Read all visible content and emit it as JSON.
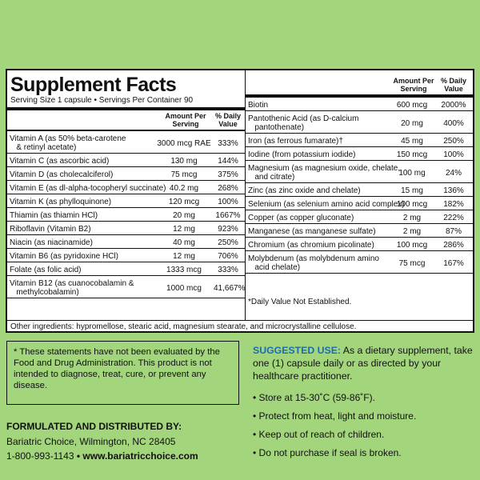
{
  "title": "Supplement Facts",
  "serving": "Serving Size 1 capsule • Servings Per Container 90",
  "header": {
    "amount": [
      "Amount Per",
      "Serving"
    ],
    "dv": [
      "% Daily",
      "Value"
    ]
  },
  "left_rows": [
    {
      "name": [
        "Vitamin A (as 50% beta-carotene",
        "   & retinyl acetate)"
      ],
      "amount": "3000 mcg RAE",
      "dv": "333%"
    },
    {
      "name": [
        "Vitamin C (as ascorbic acid)"
      ],
      "amount": "130 mg",
      "dv": "144%"
    },
    {
      "name": [
        "Vitamin D (as cholecalciferol)"
      ],
      "amount": "75 mcg",
      "dv": "375%"
    },
    {
      "name": [
        "Vitamin E (as dl-alpha-tocopheryl succinate)"
      ],
      "amount": "40.2 mg",
      "dv": "268%"
    },
    {
      "name": [
        "Vitamin K (as phylloquinone)"
      ],
      "amount": "120 mcg",
      "dv": "100%"
    },
    {
      "name": [
        "Thiamin (as thiamin HCl)"
      ],
      "amount": "20 mg",
      "dv": "1667%"
    },
    {
      "name": [
        "Riboflavin (Vitamin B2)"
      ],
      "amount": "12 mg",
      "dv": "923%"
    },
    {
      "name": [
        "Niacin (as niacinamide)"
      ],
      "amount": "40 mg",
      "dv": "250%"
    },
    {
      "name": [
        "Vitamin B6 (as pyridoxine HCl)"
      ],
      "amount": "12 mg",
      "dv": "706%"
    },
    {
      "name": [
        "Folate (as folic acid)"
      ],
      "amount": "1333 mcg",
      "dv": "333%"
    },
    {
      "name": [
        "Vitamin B12 (as cuanocobalamin &",
        "   methylcobalamin)"
      ],
      "amount": "1000 mcg",
      "dv": "41,667%"
    }
  ],
  "right_rows": [
    {
      "name": [
        "Biotin"
      ],
      "amount": "600 mcg",
      "dv": "2000%"
    },
    {
      "name": [
        "Pantothenic Acid (as D-calcium",
        "   pantothenate)"
      ],
      "amount": "20 mg",
      "dv": "400%"
    },
    {
      "name": [
        "Iron (as ferrous fumarate)†"
      ],
      "amount": "45 mg",
      "dv": "250%"
    },
    {
      "name": [
        "Iodine (from potassium iodide)"
      ],
      "amount": "150 mcg",
      "dv": "100%"
    },
    {
      "name": [
        "Magnesium (as magnesium oxide, chelate,",
        "   and citrate)"
      ],
      "amount": "100 mg",
      "dv": "24%"
    },
    {
      "name": [
        "Zinc (as zinc oxide and chelate)"
      ],
      "amount": "15 mg",
      "dv": "136%"
    },
    {
      "name": [
        "Selenium (as selenium amino acid complex)"
      ],
      "amount": "100 mcg",
      "dv": "182%"
    },
    {
      "name": [
        "Copper (as copper gluconate)"
      ],
      "amount": "2 mg",
      "dv": "222%"
    },
    {
      "name": [
        "Manganese (as manganese sulfate)"
      ],
      "amount": "2 mg",
      "dv": "87%"
    },
    {
      "name": [
        "Chromium (as chromium picolinate)"
      ],
      "amount": "100 mcg",
      "dv": "286%"
    },
    {
      "name": [
        "Molybdenum (as molybdenum amino",
        "   acid chelate)"
      ],
      "amount": "75 mcg",
      "dv": "167%"
    }
  ],
  "dv_note": "*Daily Value Not Established.",
  "other_ingredients": "Other ingredients: hypromellose, stearic acid, magnesium stearate, and microcrystalline cellulose.",
  "disclaimer": "* These statements have not been evaluated by the Food and Drug Administration. This product is not intended to diagnose, treat, cure, or prevent any disease.",
  "formulated_by": "FORMULATED AND DISTRIBUTED BY:",
  "address": "Bariatric Choice, Wilmington, NC 28405",
  "phone": "1-800-993-1143",
  "website": "• www.bariatricchoice.com",
  "suggested_use_label": "SUGGESTED USE:",
  "suggested_use_text": " As a dietary supplement, take one (1) capsule daily or as directed by your healthcare practitioner.",
  "bullets": [
    "• Store at 15-30˚C (59-86˚F).",
    "• Protect from heat, light and moisture.",
    "• Keep out of reach of children.",
    "• Do not purchase if seal is broken."
  ],
  "colors": {
    "background": "#a3d57d",
    "accent": "#1b6bb5"
  }
}
